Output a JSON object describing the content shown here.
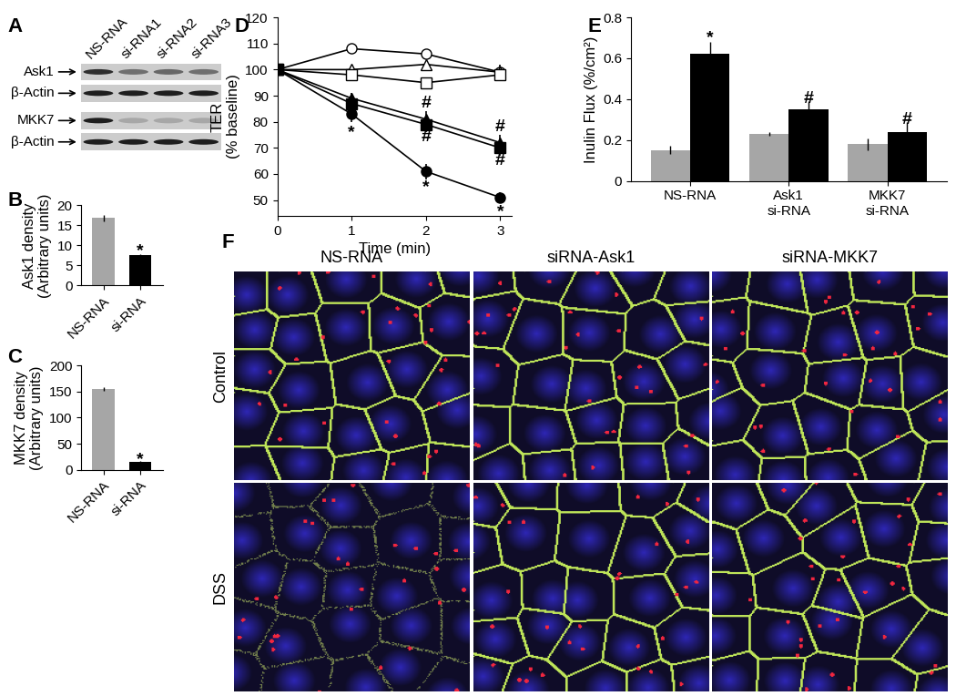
{
  "blot": {
    "panel": "A",
    "lanes": [
      "NS-RNA",
      "si-RNA1",
      "si-RNA2",
      "si-RNA3"
    ],
    "rows": [
      {
        "label": "Ask1",
        "intensity": [
          0.85,
          0.5,
          0.55,
          0.5
        ]
      },
      {
        "label": "β-Actin",
        "intensity": [
          0.95,
          0.95,
          0.95,
          0.95
        ]
      },
      {
        "label": "MKK7",
        "intensity": [
          0.95,
          0.2,
          0.2,
          0.2
        ]
      },
      {
        "label": "β-Actin",
        "intensity": [
          0.95,
          0.95,
          0.95,
          0.95
        ]
      }
    ]
  },
  "chart_data": [
    {
      "panel": "B",
      "type": "bar",
      "categories": [
        "NS-RNA",
        "si-RNA"
      ],
      "values": [
        16.8,
        7.6
      ],
      "errors": [
        0.8,
        0.3
      ],
      "colors": [
        "#a6a6a6",
        "#000000"
      ],
      "ylabel": "Ask1 density\n(Arbitrary units)",
      "ylim": [
        0,
        20
      ],
      "yticks": [
        0,
        5,
        10,
        15,
        20
      ],
      "annotations": [
        {
          "text": "*",
          "x": 1,
          "y": 8.6
        }
      ]
    },
    {
      "panel": "C",
      "type": "bar",
      "categories": [
        "NS-RNA",
        "si-RNA"
      ],
      "values": [
        155,
        15
      ],
      "errors": [
        3,
        2
      ],
      "colors": [
        "#a6a6a6",
        "#000000"
      ],
      "ylabel": "MKK7 density\n(Arbitrary units)",
      "ylim": [
        0,
        200
      ],
      "yticks": [
        0,
        50,
        100,
        150,
        200
      ],
      "annotations": [
        {
          "text": "*",
          "x": 1,
          "y": 19
        }
      ]
    },
    {
      "panel": "D",
      "type": "line",
      "x": [
        0,
        1,
        2,
        3
      ],
      "xlabel": "Time (min)",
      "ylabel": "TER\n(% baseline)",
      "xlim": [
        0,
        3.15
      ],
      "xticks": [
        0,
        1,
        2,
        3
      ],
      "ylim": [
        44,
        120
      ],
      "yticks": [
        50,
        60,
        70,
        80,
        90,
        100,
        110,
        120
      ],
      "series": [
        {
          "color": "#ffffff",
          "marker": "circle",
          "line_style": "solid",
          "values": [
            100,
            108,
            106,
            99
          ],
          "errors": [
            1,
            1,
            1,
            3
          ]
        },
        {
          "color": "#ffffff",
          "marker": "triangle",
          "line_style": "solid",
          "values": [
            100,
            100,
            102,
            99
          ],
          "errors": [
            1,
            1,
            1,
            2
          ]
        },
        {
          "color": "#ffffff",
          "marker": "square",
          "line_style": "solid",
          "values": [
            100,
            98,
            95,
            98
          ],
          "errors": [
            1,
            1,
            1,
            2
          ]
        },
        {
          "color": "#000000",
          "marker": "triangle",
          "line_style": "solid",
          "values": [
            100,
            89,
            81,
            72
          ],
          "errors": [
            1,
            2,
            3,
            3
          ]
        },
        {
          "color": "#000000",
          "marker": "square",
          "line_style": "solid",
          "values": [
            100,
            87,
            79,
            70
          ],
          "errors": [
            1,
            3,
            3,
            3
          ]
        },
        {
          "color": "#000000",
          "marker": "circle",
          "line_style": "solid",
          "values": [
            100,
            83,
            61,
            51
          ],
          "errors": [
            1,
            3,
            3,
            2
          ]
        }
      ],
      "annotations": [
        {
          "text": "*",
          "x": 1,
          "y": 76
        },
        {
          "text": "*",
          "x": 2,
          "y": 55
        },
        {
          "text": "*",
          "x": 3,
          "y": 45.5
        },
        {
          "text": "#",
          "x": 2,
          "y": 87
        },
        {
          "text": "#",
          "x": 2,
          "y": 74
        },
        {
          "text": "#",
          "x": 3,
          "y": 78
        },
        {
          "text": "#",
          "x": 3,
          "y": 65
        }
      ]
    },
    {
      "panel": "E",
      "type": "bar",
      "categories": [
        "NS-RNA",
        "Ask1\nsi-RNA",
        "MKK7\nsi-RNA"
      ],
      "ylabel": "Inulin Flux (%/cm²)",
      "ylim": [
        0,
        0.8
      ],
      "yticks": [
        0,
        0.2,
        0.4,
        0.6,
        0.8
      ],
      "series": [
        {
          "color": "#a6a6a6",
          "values": [
            0.15,
            0.23,
            0.18
          ],
          "errors": [
            0.02,
            0.01,
            0.03
          ]
        },
        {
          "color": "#000000",
          "values": [
            0.62,
            0.35,
            0.24
          ],
          "errors": [
            0.06,
            0.04,
            0.05
          ]
        }
      ],
      "annotations": [
        {
          "text": "*",
          "x": 0.2,
          "y": 0.7
        },
        {
          "text": "#",
          "x": 1.2,
          "y": 0.4
        },
        {
          "text": "#",
          "x": 2.2,
          "y": 0.3
        }
      ]
    }
  ],
  "micrographs": {
    "panel": "F",
    "columns": [
      "NS-RNA",
      "siRNA-Ask1",
      "siRNA-MKK7"
    ],
    "rows": [
      "Control",
      "DSS"
    ]
  }
}
